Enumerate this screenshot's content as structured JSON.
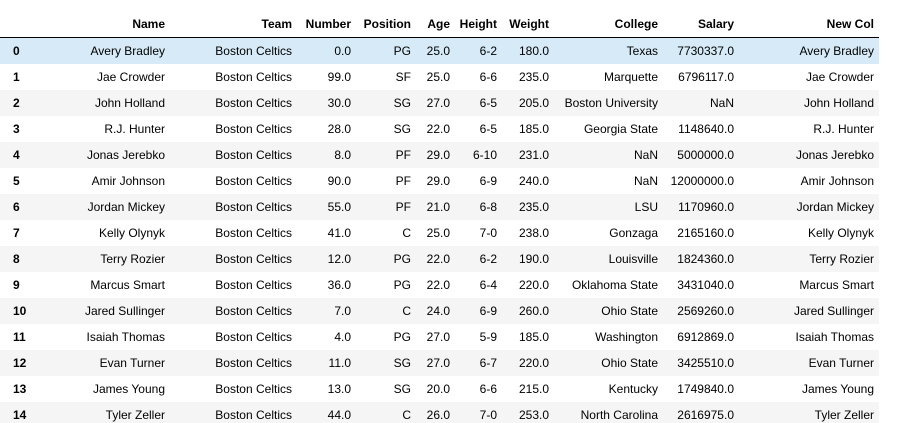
{
  "table": {
    "columns": [
      "",
      "Name",
      "Team",
      "Number",
      "Position",
      "Age",
      "Height",
      "Weight",
      "College",
      "Salary",
      "New Col"
    ],
    "rows": [
      {
        "index": "0",
        "Name": "Avery Bradley",
        "Team": "Boston Celtics",
        "Number": "0.0",
        "Position": "PG",
        "Age": "25.0",
        "Height": "6-2",
        "Weight": "180.0",
        "College": "Texas",
        "Salary": "7730337.0",
        "NewCol": "Avery Bradley"
      },
      {
        "index": "1",
        "Name": "Jae Crowder",
        "Team": "Boston Celtics",
        "Number": "99.0",
        "Position": "SF",
        "Age": "25.0",
        "Height": "6-6",
        "Weight": "235.0",
        "College": "Marquette",
        "Salary": "6796117.0",
        "NewCol": "Jae Crowder"
      },
      {
        "index": "2",
        "Name": "John Holland",
        "Team": "Boston Celtics",
        "Number": "30.0",
        "Position": "SG",
        "Age": "27.0",
        "Height": "6-5",
        "Weight": "205.0",
        "College": "Boston University",
        "Salary": "NaN",
        "NewCol": "John Holland"
      },
      {
        "index": "3",
        "Name": "R.J. Hunter",
        "Team": "Boston Celtics",
        "Number": "28.0",
        "Position": "SG",
        "Age": "22.0",
        "Height": "6-5",
        "Weight": "185.0",
        "College": "Georgia State",
        "Salary": "1148640.0",
        "NewCol": "R.J. Hunter"
      },
      {
        "index": "4",
        "Name": "Jonas Jerebko",
        "Team": "Boston Celtics",
        "Number": "8.0",
        "Position": "PF",
        "Age": "29.0",
        "Height": "6-10",
        "Weight": "231.0",
        "College": "NaN",
        "Salary": "5000000.0",
        "NewCol": "Jonas Jerebko"
      },
      {
        "index": "5",
        "Name": "Amir Johnson",
        "Team": "Boston Celtics",
        "Number": "90.0",
        "Position": "PF",
        "Age": "29.0",
        "Height": "6-9",
        "Weight": "240.0",
        "College": "NaN",
        "Salary": "12000000.0",
        "NewCol": "Amir Johnson"
      },
      {
        "index": "6",
        "Name": "Jordan Mickey",
        "Team": "Boston Celtics",
        "Number": "55.0",
        "Position": "PF",
        "Age": "21.0",
        "Height": "6-8",
        "Weight": "235.0",
        "College": "LSU",
        "Salary": "1170960.0",
        "NewCol": "Jordan Mickey"
      },
      {
        "index": "7",
        "Name": "Kelly Olynyk",
        "Team": "Boston Celtics",
        "Number": "41.0",
        "Position": "C",
        "Age": "25.0",
        "Height": "7-0",
        "Weight": "238.0",
        "College": "Gonzaga",
        "Salary": "2165160.0",
        "NewCol": "Kelly Olynyk"
      },
      {
        "index": "8",
        "Name": "Terry Rozier",
        "Team": "Boston Celtics",
        "Number": "12.0",
        "Position": "PG",
        "Age": "22.0",
        "Height": "6-2",
        "Weight": "190.0",
        "College": "Louisville",
        "Salary": "1824360.0",
        "NewCol": "Terry Rozier"
      },
      {
        "index": "9",
        "Name": "Marcus Smart",
        "Team": "Boston Celtics",
        "Number": "36.0",
        "Position": "PG",
        "Age": "22.0",
        "Height": "6-4",
        "Weight": "220.0",
        "College": "Oklahoma State",
        "Salary": "3431040.0",
        "NewCol": "Marcus Smart"
      },
      {
        "index": "10",
        "Name": "Jared Sullinger",
        "Team": "Boston Celtics",
        "Number": "7.0",
        "Position": "C",
        "Age": "24.0",
        "Height": "6-9",
        "Weight": "260.0",
        "College": "Ohio State",
        "Salary": "2569260.0",
        "NewCol": "Jared Sullinger"
      },
      {
        "index": "11",
        "Name": "Isaiah Thomas",
        "Team": "Boston Celtics",
        "Number": "4.0",
        "Position": "PG",
        "Age": "27.0",
        "Height": "5-9",
        "Weight": "185.0",
        "College": "Washington",
        "Salary": "6912869.0",
        "NewCol": "Isaiah Thomas"
      },
      {
        "index": "12",
        "Name": "Evan Turner",
        "Team": "Boston Celtics",
        "Number": "11.0",
        "Position": "SG",
        "Age": "27.0",
        "Height": "6-7",
        "Weight": "220.0",
        "College": "Ohio State",
        "Salary": "3425510.0",
        "NewCol": "Evan Turner"
      },
      {
        "index": "13",
        "Name": "James Young",
        "Team": "Boston Celtics",
        "Number": "13.0",
        "Position": "SG",
        "Age": "20.0",
        "Height": "6-6",
        "Weight": "215.0",
        "College": "Kentucky",
        "Salary": "1749840.0",
        "NewCol": "James Young"
      },
      {
        "index": "14",
        "Name": "Tyler Zeller",
        "Team": "Boston Celtics",
        "Number": "44.0",
        "Position": "C",
        "Age": "26.0",
        "Height": "7-0",
        "Weight": "253.0",
        "College": "North Carolina",
        "Salary": "2616975.0",
        "NewCol": "Tyler Zeller"
      }
    ]
  },
  "colors": {
    "row_odd": "#f5f5f5",
    "row_even": "#ffffff",
    "row_hover": "#d6ebf7",
    "header_border": "#000000"
  }
}
